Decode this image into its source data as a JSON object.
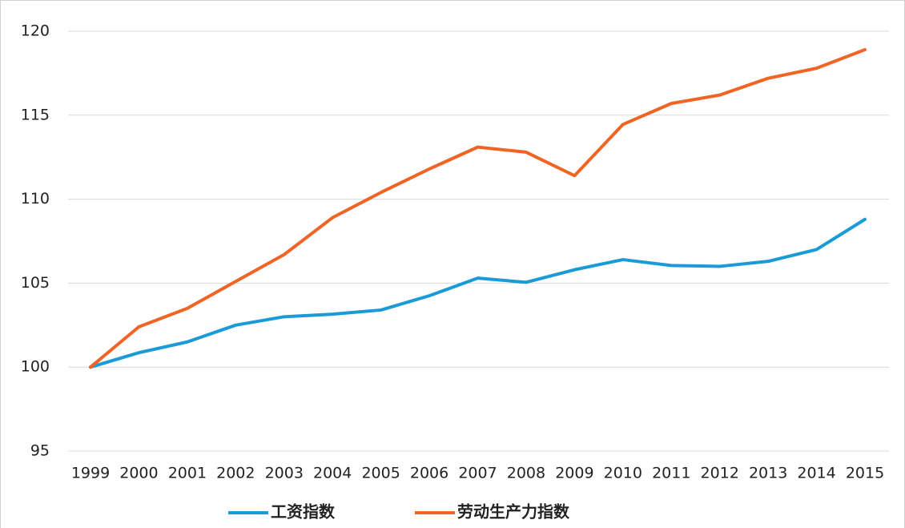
{
  "chart_data": {
    "type": "line",
    "categories": [
      "1999",
      "2000",
      "2001",
      "2002",
      "2003",
      "2004",
      "2005",
      "2006",
      "2007",
      "2008",
      "2009",
      "2010",
      "2011",
      "2012",
      "2013",
      "2014",
      "2015"
    ],
    "series": [
      {
        "name": "工资指数",
        "color": "#1a9bd7",
        "values": [
          100,
          100.86,
          101.5,
          102.5,
          103.0,
          103.15,
          103.4,
          104.25,
          105.3,
          105.05,
          105.8,
          106.4,
          106.05,
          106.0,
          106.3,
          107.0,
          108.8
        ]
      },
      {
        "name": "劳动生产力指数",
        "color": "#f06524",
        "values": [
          100,
          102.4,
          103.5,
          105.1,
          106.7,
          108.9,
          110.4,
          111.8,
          113.1,
          112.8,
          111.4,
          114.45,
          115.7,
          116.2,
          117.2,
          117.8,
          118.9
        ]
      }
    ],
    "ylim": [
      95,
      120
    ],
    "yticks": [
      95,
      100,
      105,
      110,
      115,
      120
    ],
    "grid": true,
    "legend": "bottom"
  }
}
